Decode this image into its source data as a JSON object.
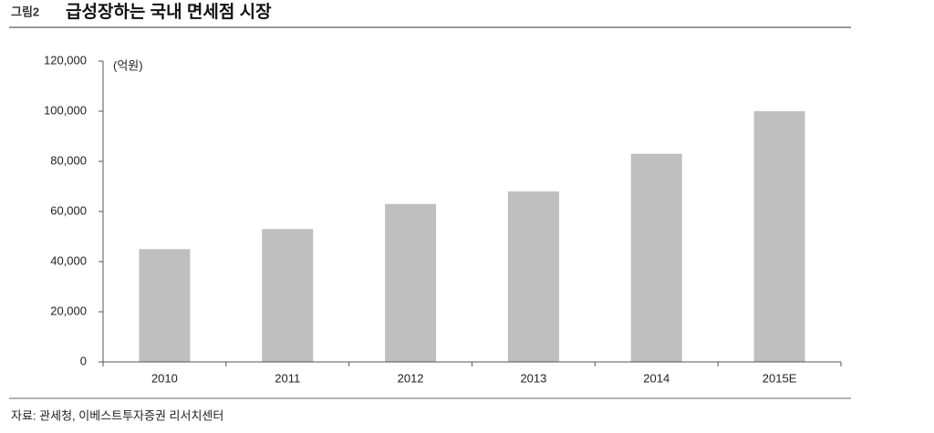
{
  "chart_data": {
    "type": "bar",
    "figure_label": "그림2",
    "title": "급성장하는 국내 면세점 시장",
    "unit_label": "(억원)",
    "source": "자료: 관세청, 이베스트투자증권 리서치센터",
    "categories": [
      "2010",
      "2011",
      "2012",
      "2013",
      "2014",
      "2015E"
    ],
    "values": [
      45000,
      53000,
      63000,
      68000,
      83000,
      100000
    ],
    "color": "#bfbfbf",
    "ylim": [
      0,
      120000
    ],
    "yticks": [
      0,
      {
        "value": 20000,
        "label": "20,000"
      },
      {
        "value": 40000,
        "label": "40,000"
      },
      {
        "value": 60000,
        "label": "60,000"
      },
      {
        "value": 80000,
        "label": "80,000"
      },
      {
        "value": 100000,
        "label": "100,000"
      },
      {
        "value": 120000,
        "label": "120,000"
      }
    ],
    "grid": false
  }
}
